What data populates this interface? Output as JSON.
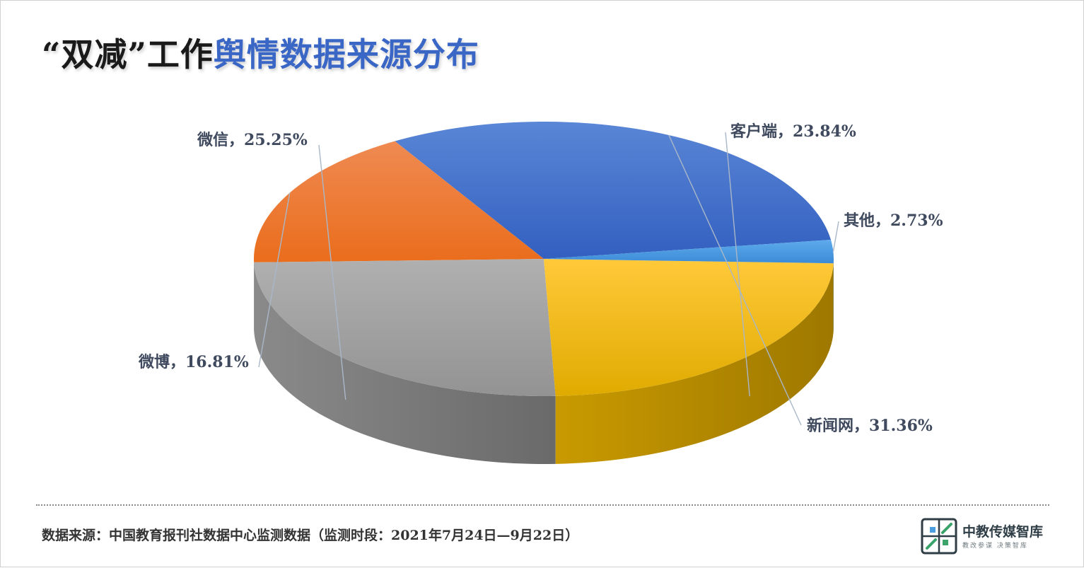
{
  "title": {
    "part1": "“双减”工作",
    "part2": "舆情数据来源分布"
  },
  "chart_data": {
    "type": "pie",
    "title": "“双减”工作舆情数据来源分布",
    "slices": [
      {
        "label": "新闻网",
        "value": 31.36,
        "display": "新闻网，31.36%",
        "color": "#3b66c4"
      },
      {
        "label": "微博",
        "value": 16.81,
        "display": "微博，16.81%",
        "color": "#ed7a2c"
      },
      {
        "label": "微信",
        "value": 25.25,
        "display": "微信，25.25%",
        "color": "#a6a6a6"
      },
      {
        "label": "客户端",
        "value": 23.84,
        "display": "客户端，23.84%",
        "color": "#f8c000"
      },
      {
        "label": "其他",
        "value": 2.73,
        "display": "其他，2.73%",
        "color": "#4a9ee0"
      }
    ],
    "style": "3d-perspective"
  },
  "footer": {
    "source": "数据来源：中国教育报刊社数据中心监测数据（监测时段：2021年7月24日—9月22日）",
    "logo_name": "中教传媒智库",
    "logo_sub": "教改参谋 决策智库",
    "logo_icon": "grid-logo-icon"
  }
}
